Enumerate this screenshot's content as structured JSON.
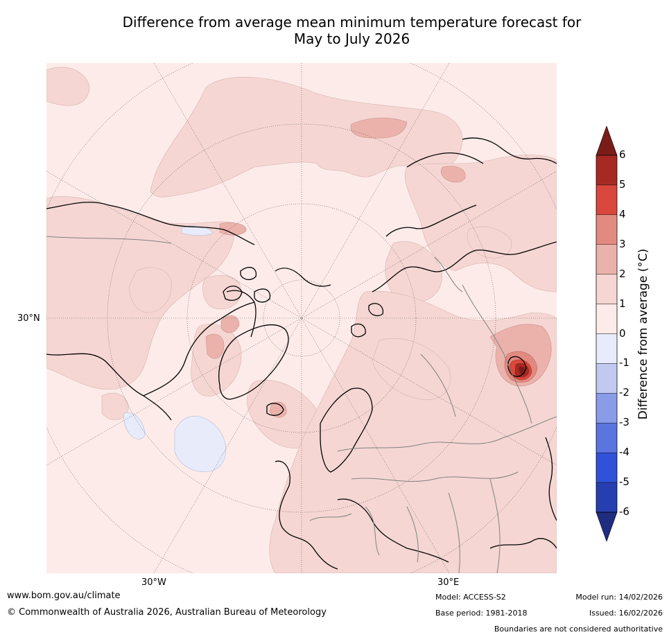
{
  "title": {
    "line1": "Difference from average mean minimum temperature forecast for",
    "line2": "May to July 2026"
  },
  "map": {
    "projection": "north-polar-stereographic",
    "labels": {
      "lat_30n": "30°N",
      "lon_30w": "30°W",
      "lon_30e": "30°E"
    },
    "colors": {
      "ocean_land_0_1": "#fcebe9",
      "band_1_2": "#f5d6d2",
      "band_2_3": "#ebb2ac",
      "band_3_4": "#e38a80",
      "band_4_5": "#d9473d",
      "band_5_6": "#a62a23",
      "band_6_plus": "#7a1d18",
      "band_0_m1": "#e8ecfa",
      "coastline": "#000000",
      "borders": "#808080",
      "graticule": "#555555"
    }
  },
  "colorbar": {
    "title": "Difference from average (°C)",
    "ticks": [
      "6",
      "5",
      "4",
      "3",
      "2",
      "1",
      "0",
      "-1",
      "-2",
      "-3",
      "-4",
      "-5",
      "-6"
    ],
    "bands": [
      {
        "range": "above 6",
        "color": "#7a1d18"
      },
      {
        "range": "5 to 6",
        "color": "#a62a23"
      },
      {
        "range": "4 to 5",
        "color": "#d9473d"
      },
      {
        "range": "3 to 4",
        "color": "#e38a80"
      },
      {
        "range": "2 to 3",
        "color": "#ebb2ac"
      },
      {
        "range": "1 to 2",
        "color": "#f5d6d2"
      },
      {
        "range": "0 to 1",
        "color": "#fcebe9"
      },
      {
        "range": "-1 to 0",
        "color": "#e8ecfa"
      },
      {
        "range": "-2 to -1",
        "color": "#c1c9f0"
      },
      {
        "range": "-3 to -2",
        "color": "#8a9be8"
      },
      {
        "range": "-4 to -3",
        "color": "#5a74e0"
      },
      {
        "range": "-5 to -4",
        "color": "#2f52d8"
      },
      {
        "range": "-6 to -5",
        "color": "#263fb0"
      },
      {
        "range": "below -6",
        "color": "#1f2c80"
      }
    ]
  },
  "footer": {
    "website": "www.bom.gov.au/climate",
    "copyright": "© Commonwealth of Australia 2026, Australian Bureau of Meteorology",
    "model": "Model: ACCESS-S2",
    "base_period": "Base period: 1981-2018",
    "model_run": "Model run: 14/02/2026",
    "issued": "Issued: 16/02/2026",
    "disclaimer": "Boundaries are not considered authoritative"
  }
}
